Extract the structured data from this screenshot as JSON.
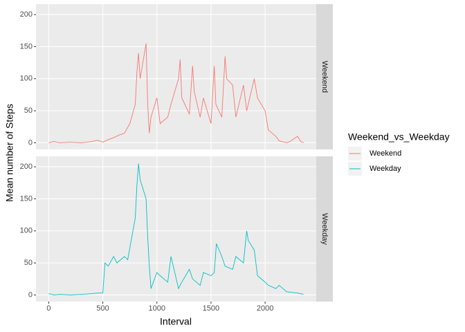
{
  "chart_data": [
    {
      "type": "line",
      "strip": "Weekend",
      "ylabel": "Mean number of Steps",
      "legend_title": "Weekend_vs_Weekday",
      "xlim": [
        -117.75,
        2472.75
      ],
      "ylim": [
        -10.3,
        216.3
      ],
      "yticks": [
        0,
        50,
        100,
        150,
        200
      ],
      "grid": true,
      "x": [
        0,
        50,
        100,
        200,
        300,
        400,
        450,
        500,
        550,
        600,
        650,
        700,
        750,
        800,
        815,
        830,
        845,
        900,
        915,
        930,
        945,
        1000,
        1030,
        1100,
        1130,
        1200,
        1215,
        1230,
        1300,
        1330,
        1345,
        1400,
        1430,
        1500,
        1530,
        1545,
        1600,
        1630,
        1645,
        1700,
        1730,
        1800,
        1830,
        1900,
        1930,
        2000,
        2030,
        2100,
        2130,
        2200,
        2230,
        2300,
        2330,
        2355
      ],
      "series": [
        {
          "name": "Weekend",
          "color": "#F8766D",
          "values": [
            0,
            2,
            0,
            1,
            0,
            2,
            4,
            1,
            5,
            8,
            12,
            15,
            30,
            60,
            110,
            140,
            100,
            155,
            60,
            15,
            40,
            70,
            30,
            40,
            60,
            100,
            130,
            70,
            45,
            120,
            80,
            40,
            70,
            30,
            120,
            60,
            40,
            135,
            100,
            90,
            40,
            90,
            50,
            100,
            70,
            50,
            20,
            10,
            3,
            0,
            2,
            10,
            2,
            0
          ]
        }
      ]
    },
    {
      "type": "line",
      "strip": "Weekday",
      "xlabel": "Interval",
      "xlim": [
        -117.75,
        2472.75
      ],
      "ylim": [
        -10.3,
        216.3
      ],
      "yticks": [
        0,
        50,
        100,
        150,
        200
      ],
      "xticks": [
        0,
        500,
        1000,
        1500,
        2000
      ],
      "grid": true,
      "x": [
        0,
        50,
        100,
        200,
        300,
        400,
        450,
        500,
        520,
        550,
        600,
        630,
        700,
        730,
        800,
        815,
        830,
        845,
        900,
        915,
        930,
        945,
        1000,
        1030,
        1100,
        1130,
        1200,
        1230,
        1300,
        1330,
        1400,
        1430,
        1500,
        1530,
        1550,
        1600,
        1630,
        1700,
        1730,
        1800,
        1830,
        1845,
        1900,
        1930,
        2000,
        2030,
        2100,
        2130,
        2200,
        2300,
        2355
      ],
      "series": [
        {
          "name": "Weekday",
          "color": "#00BFC4",
          "values": [
            2,
            0,
            1,
            0,
            1,
            2,
            3,
            3,
            50,
            45,
            60,
            50,
            60,
            55,
            120,
            170,
            205,
            180,
            150,
            90,
            45,
            10,
            35,
            30,
            20,
            60,
            10,
            20,
            40,
            25,
            15,
            35,
            30,
            35,
            80,
            60,
            45,
            40,
            60,
            50,
            100,
            85,
            70,
            30,
            20,
            15,
            10,
            15,
            5,
            3,
            1
          ]
        }
      ]
    }
  ]
}
